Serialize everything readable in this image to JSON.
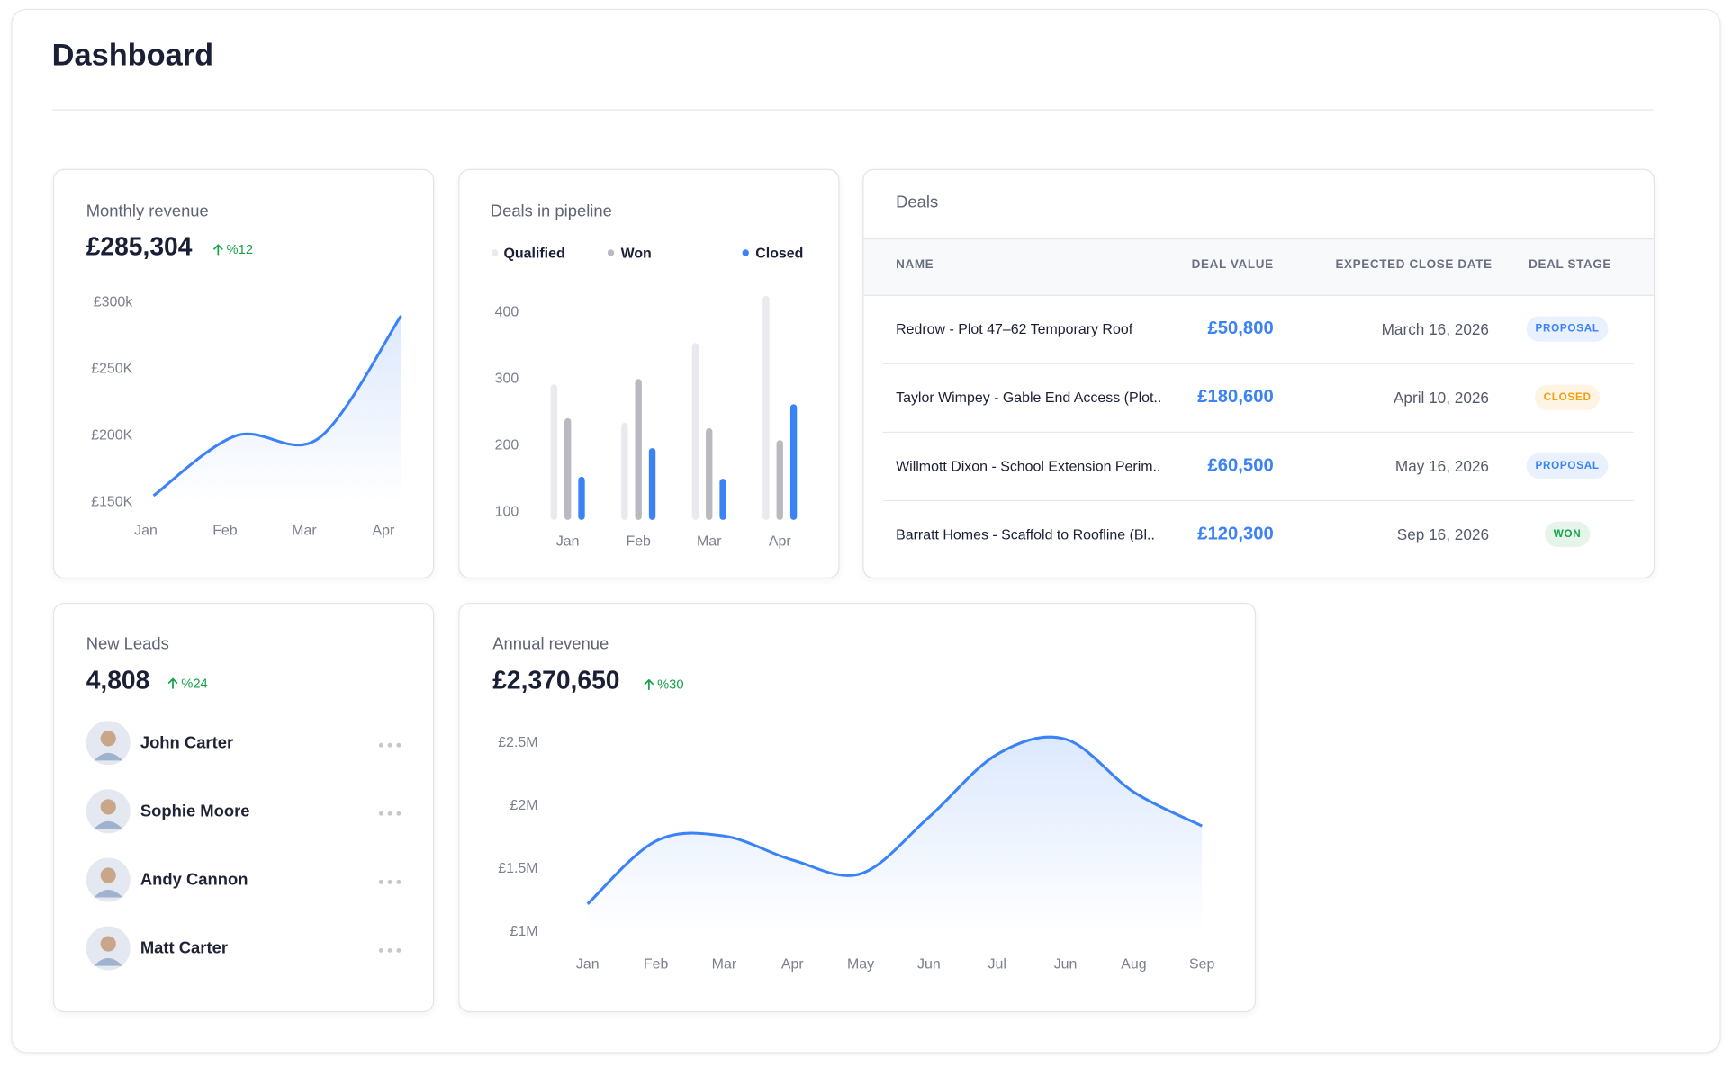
{
  "header": {
    "title": "Dashboard"
  },
  "chart_data": [
    {
      "type": "line",
      "title": "Monthly revenue",
      "value": "£285,304",
      "change": "%12",
      "categories": [
        "Jan",
        "Feb",
        "Mar",
        "Apr"
      ],
      "values": [
        155000,
        200000,
        198000,
        290000
      ],
      "color": "#3b82f6",
      "ylim": [
        150000,
        300000
      ],
      "yticks": [
        {
          "value": 300000,
          "label": "£300k"
        },
        {
          "value": 250000,
          "label": "£250K"
        },
        {
          "value": 200000,
          "label": "£200K"
        },
        {
          "value": 150000,
          "label": "£150K"
        }
      ]
    },
    {
      "type": "bar",
      "title": "Deals in pipeline",
      "categories": [
        "Jan",
        "Feb",
        "Mar",
        "Apr"
      ],
      "series": [
        {
          "name": "Qualified",
          "color": "#e9e9ee",
          "values": [
            292,
            234,
            354,
            425
          ]
        },
        {
          "name": "Won",
          "color": "#b9b9c1",
          "values": [
            241,
            300,
            226,
            208
          ]
        },
        {
          "name": "Closed",
          "color": "#3b82f6",
          "values": [
            153,
            196,
            150,
            262
          ]
        }
      ],
      "ylim": [
        88,
        430
      ],
      "yticks": [
        400,
        300,
        200,
        100
      ],
      "legend": "top"
    },
    {
      "type": "line",
      "title": "Annual revenue",
      "value": "£2,370,650",
      "change": "%30",
      "categories": [
        "Jan",
        "Feb",
        "Mar",
        "Apr",
        "May",
        "Jun",
        "Jul",
        "Jun",
        "Aug",
        "Sep"
      ],
      "values": [
        1220000,
        1720000,
        1760000,
        1570000,
        1460000,
        1910000,
        2410000,
        2530000,
        2110000,
        1840000
      ],
      "color": "#3b82f6",
      "ylim": [
        1000000,
        2600000
      ],
      "yticks": [
        {
          "value": 2500000,
          "label": "£2.5M"
        },
        {
          "value": 2000000,
          "label": "£2M"
        },
        {
          "value": 1500000,
          "label": "£1.5M"
        },
        {
          "value": 1000000,
          "label": "£1M"
        }
      ]
    }
  ],
  "deals": {
    "title": "Deals",
    "columns": [
      "NAME",
      "DEAL VALUE",
      "EXPECTED CLOSE DATE",
      "DEAL STAGE"
    ],
    "rows": [
      {
        "name": "Redrow - Plot 47–62 Temporary Roof",
        "value": "£50,800",
        "date": "March 16, 2026",
        "stage": "PROPOSAL",
        "stage_color": "#3b82f6"
      },
      {
        "name": "Taylor Wimpey - Gable End Access (Plot..",
        "value": "£180,600",
        "date": "April 10, 2026",
        "stage": "CLOSED",
        "stage_color": "#f59e0b"
      },
      {
        "name": "Willmott Dixon - School Extension Perim..",
        "value": "£60,500",
        "date": "May 16, 2026",
        "stage": "PROPOSAL",
        "stage_color": "#3b82f6"
      },
      {
        "name": "Barratt Homes - Scaffold to Roofline (Bl..",
        "value": "£120,300",
        "date": "Sep 16, 2026",
        "stage": "WON",
        "stage_color": "#16a34a"
      }
    ]
  },
  "leads": {
    "title": "New Leads",
    "value": "4,808",
    "change": "%24",
    "people": [
      "John Carter",
      "Sophie Moore",
      "Andy Cannon",
      "Matt Carter"
    ]
  }
}
